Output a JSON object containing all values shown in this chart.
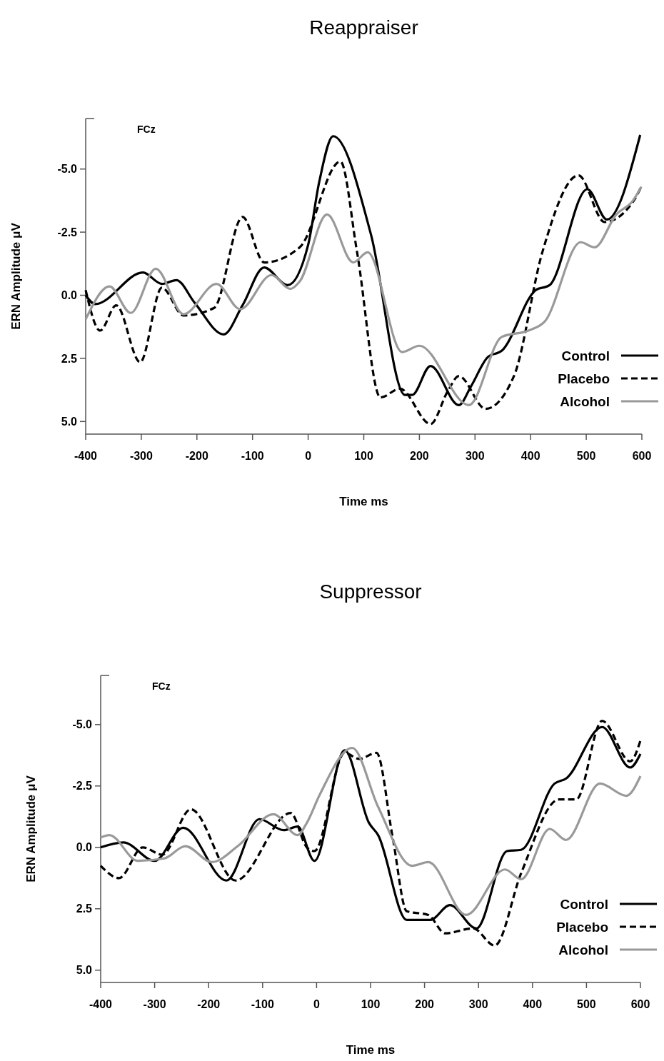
{
  "chart_data": [
    {
      "type": "line",
      "title": "Reappraiser",
      "xlabel": "Time ms",
      "ylabel": "ERN Amplitude μV",
      "annotations": [
        "FCz"
      ],
      "xlim": [
        -400,
        600
      ],
      "xticks": [
        -400,
        -300,
        -200,
        -100,
        0,
        100,
        200,
        300,
        400,
        500,
        600
      ],
      "ylim": [
        5.5,
        -7
      ],
      "yticks": [
        {
          "value": -5,
          "label": "-5.0"
        },
        {
          "value": -2.5,
          "label": "-2.5"
        },
        {
          "value": 0,
          "label": "0.0"
        },
        {
          "value": 2.5,
          "label": "2.5"
        },
        {
          "value": 5,
          "label": "5.0"
        }
      ],
      "legend": "bottom right",
      "grid": false,
      "marker": "none",
      "series": [
        {
          "name": "Control",
          "color": "#000000",
          "line_style": "solid",
          "x": [
            -400,
            -383,
            -297,
            -263,
            -237,
            -204,
            -152,
            -118,
            -79,
            -37,
            0,
            20,
            45,
            113,
            174,
            187,
            220,
            271,
            293,
            323,
            348,
            409,
            434,
            502,
            537,
            597
          ],
          "values": [
            0,
            0.35,
            -0.9,
            -0.45,
            -0.6,
            0.3,
            1.55,
            0.4,
            -1.1,
            -0.4,
            -2.0,
            -4.5,
            -6.3,
            -2.4,
            3.95,
            3.95,
            2.8,
            4.35,
            3.6,
            2.45,
            2.2,
            -0.2,
            -0.4,
            -4.2,
            -3.0,
            -6.35
          ]
        },
        {
          "name": "Placebo",
          "color": "#000000",
          "line_style": "dashed",
          "x": [
            -400,
            -374,
            -345,
            -302,
            -263,
            -224,
            -169,
            -118,
            -79,
            -15,
            58,
            88,
            130,
            165,
            220,
            251,
            271,
            319,
            370,
            421,
            486,
            533,
            584,
            599
          ],
          "values": [
            -0.2,
            1.4,
            0.4,
            2.65,
            -0.3,
            0.8,
            0.5,
            -3.1,
            -1.3,
            -1.9,
            -5.3,
            -1.7,
            4.05,
            3.7,
            5.1,
            3.8,
            3.2,
            4.5,
            3.2,
            -1.7,
            -4.75,
            -2.9,
            -3.7,
            -4.3
          ]
        },
        {
          "name": "Alcohol",
          "color": "#999999",
          "line_style": "solid",
          "x": [
            -400,
            -357,
            -319,
            -274,
            -224,
            -165,
            -122,
            -66,
            -32,
            -15,
            34,
            81,
            107,
            169,
            200,
            289,
            348,
            396,
            425,
            490,
            515,
            554,
            584,
            599
          ],
          "values": [
            0.95,
            -0.35,
            0.7,
            -1.05,
            0.75,
            -0.45,
            0.55,
            -0.8,
            -0.25,
            -0.55,
            -3.2,
            -1.3,
            -1.7,
            2.25,
            2.0,
            4.35,
            1.65,
            1.4,
            1.05,
            -2.1,
            -1.9,
            -3.2,
            -3.75,
            -4.3
          ]
        }
      ]
    },
    {
      "type": "line",
      "title": "Suppressor",
      "xlabel": "Time ms",
      "ylabel": "ERN Amplitude μV",
      "annotations": [
        "FCz"
      ],
      "xlim": [
        -400,
        600
      ],
      "xticks": [
        -400,
        -300,
        -200,
        -100,
        0,
        100,
        200,
        300,
        400,
        500,
        600
      ],
      "ylim": [
        5.5,
        -7
      ],
      "yticks": [
        {
          "value": -5,
          "label": "-5.0"
        },
        {
          "value": -2.5,
          "label": "-2.5"
        },
        {
          "value": 0,
          "label": "0.0"
        },
        {
          "value": 2.5,
          "label": "2.5"
        },
        {
          "value": 5,
          "label": "5.0"
        }
      ],
      "legend": "bottom right",
      "grid": false,
      "marker": "none",
      "series": [
        {
          "name": "Control",
          "color": "#000000",
          "line_style": "solid",
          "x": [
            -400,
            -358,
            -300,
            -247,
            -167,
            -106,
            -61,
            -35,
            -4,
            52,
            97,
            114,
            167,
            211,
            247,
            296,
            353,
            379,
            441,
            462,
            529,
            581,
            600
          ],
          "values": [
            0,
            -0.2,
            0.55,
            -0.8,
            1.35,
            -1.15,
            -0.7,
            -0.85,
            0.55,
            -3.95,
            -1.0,
            -0.5,
            2.95,
            2.95,
            2.35,
            3.3,
            0.15,
            0.1,
            -2.6,
            -2.8,
            -4.9,
            -3.25,
            -3.8
          ]
        },
        {
          "name": "Placebo",
          "color": "#000000",
          "line_style": "dashed",
          "x": [
            -400,
            -366,
            -322,
            -286,
            -233,
            -150,
            -48,
            -18,
            -4,
            52,
            79,
            111,
            141,
            167,
            207,
            238,
            290,
            330,
            379,
            449,
            481,
            529,
            581,
            600
          ],
          "values": [
            0.75,
            1.25,
            0,
            0.3,
            -1.55,
            1.35,
            -1.4,
            0,
            0.15,
            -3.85,
            -3.6,
            -3.85,
            -0.4,
            2.6,
            2.75,
            3.5,
            3.3,
            4.0,
            1.05,
            -1.95,
            -1.95,
            -5.15,
            -3.5,
            -4.35
          ]
        },
        {
          "name": "Alcohol",
          "color": "#999999",
          "line_style": "solid",
          "x": [
            -400,
            -384,
            -331,
            -282,
            -243,
            -194,
            -146,
            -80,
            -35,
            -18,
            6,
            66,
            114,
            177,
            207,
            277,
            349,
            379,
            432,
            462,
            525,
            574,
            600
          ],
          "values": [
            -0.4,
            -0.5,
            0.55,
            0.45,
            -0.05,
            0.6,
            -0.05,
            -1.35,
            -0.5,
            -1.0,
            -2.15,
            -4.05,
            -1.65,
            0.75,
            0.6,
            2.75,
            0.9,
            1.3,
            -0.75,
            -0.3,
            -2.6,
            -2.1,
            -2.9
          ]
        }
      ]
    }
  ]
}
